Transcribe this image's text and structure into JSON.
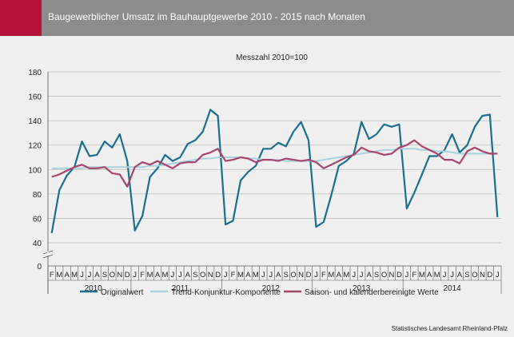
{
  "header": {
    "title": "Baugewerblicher Umsatz im Bauhauptgewerbe 2010 - 2015 nach Monaten"
  },
  "chart_data": {
    "type": "line",
    "subtitle": "Messzahl 2010=100",
    "ylim": [
      0,
      180
    ],
    "yticks": [
      0,
      40,
      60,
      80,
      100,
      120,
      140,
      160,
      180
    ],
    "axis_break": true,
    "grid": true,
    "legend_position": "bottom",
    "x_month_labels": [
      "F",
      "M",
      "A",
      "M",
      "J",
      "J",
      "A",
      "S",
      "O",
      "N",
      "D",
      "J",
      "F",
      "M",
      "A",
      "M",
      "J",
      "J",
      "A",
      "S",
      "O",
      "N",
      "D",
      "J",
      "F",
      "M",
      "A",
      "M",
      "J",
      "J",
      "A",
      "S",
      "O",
      "N",
      "D",
      "J",
      "F",
      "M",
      "A",
      "M",
      "J",
      "J",
      "A",
      "S",
      "O",
      "N",
      "D",
      "J",
      "F",
      "M",
      "A",
      "M",
      "J",
      "J",
      "A",
      "S",
      "O",
      "N",
      "D",
      "J"
    ],
    "years": [
      {
        "label": "2010",
        "start": 0,
        "end": 11
      },
      {
        "label": "2011",
        "start": 11,
        "end": 23
      },
      {
        "label": "2012",
        "start": 23,
        "end": 35
      },
      {
        "label": "2013",
        "start": 35,
        "end": 47
      },
      {
        "label": "2014",
        "start": 47,
        "end": 59
      }
    ],
    "series": [
      {
        "name": "Originalwert",
        "color": "#1a6e8e",
        "values": [
          48,
          83,
          95,
          102,
          123,
          111,
          112,
          123,
          118,
          129,
          107,
          50,
          62,
          94,
          101,
          112,
          107,
          110,
          121,
          124,
          131,
          149,
          144,
          55,
          58,
          91,
          98,
          103,
          117,
          117,
          122,
          119,
          131,
          139,
          124,
          53,
          57,
          79,
          103,
          107,
          113,
          139,
          125,
          129,
          137,
          135,
          137,
          68,
          81,
          96,
          111,
          111,
          116,
          129,
          114,
          120,
          135,
          144,
          145,
          61
        ]
      },
      {
        "name": "Trend-Konjunktur-Komponente",
        "color": "#a6d2dd",
        "values": [
          101,
          101,
          101,
          101,
          101,
          102,
          102,
          102,
          102,
          102,
          102,
          102,
          102,
          103,
          103,
          104,
          105,
          106,
          107,
          108,
          109,
          109,
          110,
          110,
          110,
          110,
          109,
          109,
          108,
          108,
          108,
          107,
          107,
          107,
          107,
          107,
          108,
          109,
          110,
          111,
          112,
          113,
          114,
          115,
          116,
          116,
          117,
          117,
          117,
          116,
          116,
          115,
          115,
          114,
          113,
          113,
          113,
          113,
          113,
          113
        ]
      },
      {
        "name": "Saison- und kalenderbereinigte Werte",
        "color": "#a9446f",
        "values": [
          94,
          96,
          99,
          102,
          104,
          101,
          101,
          102,
          97,
          96,
          86,
          102,
          106,
          104,
          107,
          104,
          101,
          105,
          106,
          106,
          112,
          114,
          117,
          107,
          108,
          110,
          109,
          106,
          108,
          108,
          107,
          109,
          108,
          107,
          108,
          106,
          101,
          104,
          107,
          110,
          112,
          118,
          115,
          114,
          112,
          113,
          118,
          120,
          124,
          119,
          116,
          113,
          108,
          108,
          105,
          115,
          118,
          115,
          113,
          113
        ]
      }
    ]
  },
  "source": "Statistisches Landesamt Rheinland-Pfalz"
}
